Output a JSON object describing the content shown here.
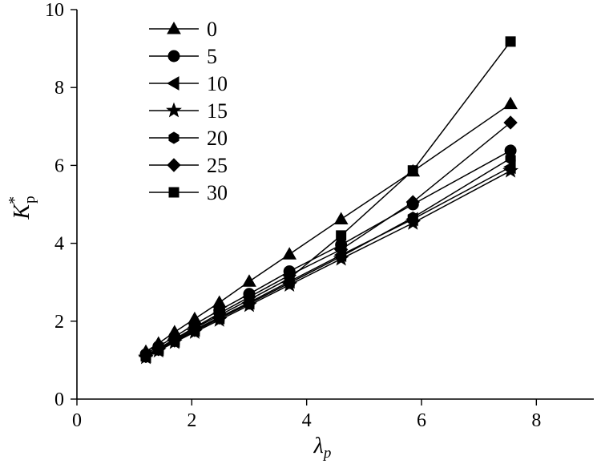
{
  "chart_data": {
    "type": "line",
    "xlabel": "λ",
    "xlabel_sub": "p",
    "ylabel": "K",
    "ylabel_sup": "*",
    "ylabel_sub": "p",
    "xlim": [
      0,
      9
    ],
    "ylim": [
      0,
      10
    ],
    "x_ticks": [
      0,
      2,
      4,
      6,
      8
    ],
    "y_ticks": [
      0,
      2,
      4,
      6,
      8,
      10
    ],
    "grid": false,
    "legend_position": "top-left",
    "series": [
      {
        "name": "0",
        "marker": "triangle-up",
        "x": [
          1.2,
          1.42,
          1.7,
          2.05,
          2.48,
          3.0,
          3.7,
          4.6,
          5.85,
          7.55
        ],
        "y": [
          1.22,
          1.43,
          1.72,
          2.06,
          2.48,
          3.02,
          3.72,
          4.62,
          5.85,
          7.58
        ]
      },
      {
        "name": "5",
        "marker": "circle",
        "x": [
          1.2,
          1.42,
          1.7,
          2.05,
          2.48,
          3.0,
          3.7,
          4.6,
          5.85,
          7.55
        ],
        "y": [
          1.15,
          1.35,
          1.6,
          1.92,
          2.28,
          2.7,
          3.28,
          3.96,
          5.0,
          6.38
        ]
      },
      {
        "name": "10",
        "marker": "triangle-left",
        "x": [
          1.2,
          1.42,
          1.7,
          2.05,
          2.48,
          3.0,
          3.7,
          4.6,
          5.85,
          7.55
        ],
        "y": [
          1.1,
          1.28,
          1.5,
          1.78,
          2.1,
          2.48,
          3.02,
          3.7,
          4.62,
          5.96
        ]
      },
      {
        "name": "15",
        "marker": "star",
        "x": [
          1.2,
          1.42,
          1.7,
          2.05,
          2.48,
          3.0,
          3.7,
          4.6,
          5.85,
          7.55
        ],
        "y": [
          1.07,
          1.24,
          1.46,
          1.72,
          2.03,
          2.41,
          2.93,
          3.6,
          4.52,
          5.86
        ]
      },
      {
        "name": "20",
        "marker": "hexagon",
        "x": [
          1.2,
          1.42,
          1.7,
          2.05,
          2.48,
          3.0,
          3.7,
          4.6,
          5.85,
          7.55
        ],
        "y": [
          1.08,
          1.26,
          1.48,
          1.75,
          2.07,
          2.45,
          2.98,
          3.66,
          4.66,
          6.18
        ]
      },
      {
        "name": "25",
        "marker": "diamond",
        "x": [
          1.2,
          1.42,
          1.7,
          2.05,
          2.48,
          3.0,
          3.7,
          4.6,
          5.85,
          7.55
        ],
        "y": [
          1.12,
          1.3,
          1.54,
          1.84,
          2.2,
          2.62,
          3.18,
          3.84,
          5.06,
          7.1
        ]
      },
      {
        "name": "30",
        "marker": "square",
        "x": [
          1.2,
          1.42,
          1.7,
          2.05,
          2.48,
          3.0,
          3.7,
          4.6,
          5.85,
          7.55
        ],
        "y": [
          1.1,
          1.28,
          1.52,
          1.82,
          2.15,
          2.55,
          3.1,
          4.2,
          5.87,
          9.18
        ]
      }
    ]
  }
}
